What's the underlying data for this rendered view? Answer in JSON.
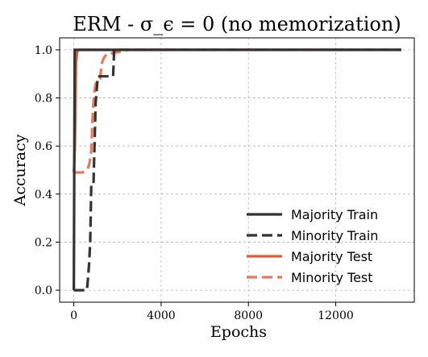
{
  "chart_data": {
    "type": "line",
    "title": "ERM - σ_ϵ = 0 (no memorization)",
    "xlabel": "Epochs",
    "ylabel": "Accuracy",
    "xlim": [
      -650,
      15600
    ],
    "ylim": [
      -0.05,
      1.05
    ],
    "xticks": [
      0,
      4000,
      8000,
      12000
    ],
    "yticks": [
      0.0,
      0.2,
      0.4,
      0.6,
      0.8,
      1.0
    ],
    "xtick_labels": [
      "0",
      "4000",
      "8000",
      "12000"
    ],
    "ytick_labels": [
      "0.0",
      "0.2",
      "0.4",
      "0.6",
      "0.8",
      "1.0"
    ],
    "grid": true,
    "legend_position": "lower right",
    "colors": {
      "majority_train": "#333333",
      "minority_train": "#333333",
      "majority_test": "#dd5c3c",
      "minority_test": "#e8785a"
    },
    "series": [
      {
        "name": "Majority Train",
        "color": "#333333",
        "style": "solid",
        "x": [
          0,
          20,
          40,
          60,
          100,
          15000
        ],
        "y": [
          0.0,
          0.5,
          1.0,
          1.0,
          1.0,
          1.0
        ]
      },
      {
        "name": "Minority Train",
        "color": "#333333",
        "style": "dashed",
        "x": [
          0,
          600,
          650,
          700,
          750,
          800,
          850,
          900,
          1000,
          1100,
          1200,
          1300,
          1400,
          1500,
          1600,
          1700,
          1800,
          1850,
          2000,
          4000,
          15000
        ],
        "y": [
          0.0,
          0.0,
          0.05,
          0.11,
          0.2,
          0.44,
          0.44,
          0.44,
          0.78,
          0.89,
          0.89,
          0.89,
          0.89,
          0.89,
          0.89,
          0.89,
          0.89,
          1.0,
          1.0,
          1.0,
          1.0
        ]
      },
      {
        "name": "Majority Test",
        "color": "#dd5c3c",
        "style": "solid",
        "x": [
          0,
          50,
          100,
          150,
          200,
          300,
          400,
          15000
        ],
        "y": [
          0.49,
          0.6,
          0.95,
          0.99,
          1.0,
          1.0,
          1.0,
          1.0
        ]
      },
      {
        "name": "Minority Test",
        "color": "#e8785a",
        "style": "dashed",
        "x": [
          0,
          200,
          400,
          600,
          700,
          800,
          850,
          900,
          950,
          1000,
          1100,
          1200,
          1300,
          1400,
          1500,
          1600,
          1700,
          1800,
          2000,
          2500,
          3000,
          15000
        ],
        "y": [
          0.49,
          0.49,
          0.49,
          0.5,
          0.52,
          0.58,
          0.7,
          0.78,
          0.83,
          0.86,
          0.87,
          0.88,
          0.95,
          0.97,
          0.98,
          0.98,
          0.98,
          0.99,
          0.99,
          1.0,
          1.0,
          1.0
        ]
      }
    ]
  }
}
